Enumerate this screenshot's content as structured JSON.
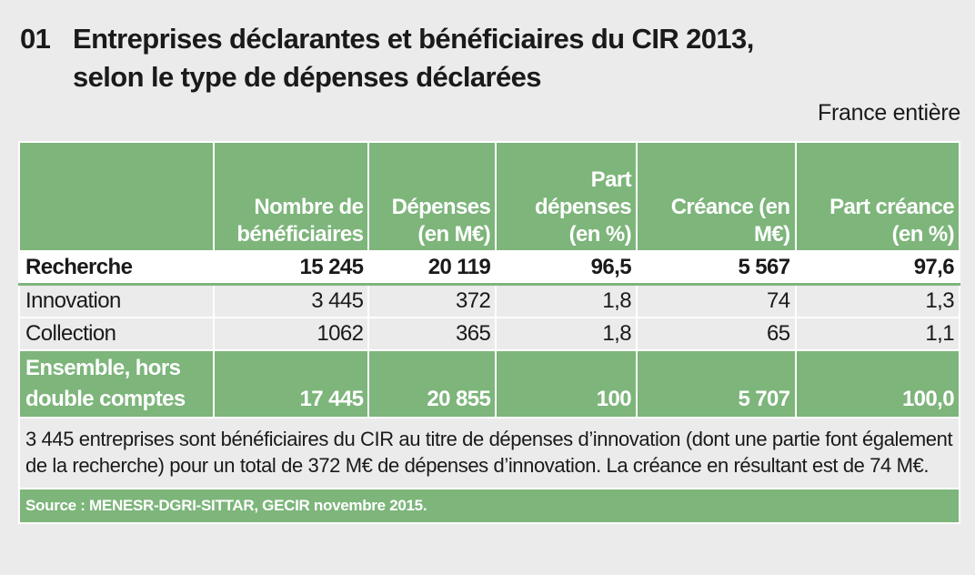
{
  "title": {
    "number": "01",
    "line1": "Entreprises déclarantes et bénéficiaires du CIR 2013,",
    "line2": "selon le type de dépenses déclarées"
  },
  "scope": "France entière",
  "table": {
    "headers": [
      "",
      "Nombre de bénéficiaires",
      "Dépenses (en M€)",
      "Part dépenses (en %)",
      "Créance (en M€)",
      "Part créance (en %)"
    ],
    "rows": [
      {
        "label": "Recherche",
        "values": [
          "15 245",
          "20 119",
          "96,5",
          "5 567",
          "97,6"
        ]
      },
      {
        "label": "Innovation",
        "values": [
          "3 445",
          "372",
          "1,8",
          "74",
          "1,3"
        ]
      },
      {
        "label": "Collection",
        "values": [
          "1062",
          "365",
          "1,8",
          "65",
          "1,1"
        ]
      }
    ],
    "total": {
      "label_line1": "Ensemble, hors",
      "label_line2": "double comptes",
      "values": [
        "17 445",
        "20 855",
        "100",
        "5 707",
        "100,0"
      ]
    }
  },
  "note": "3 445 entreprises sont bénéficiaires du CIR au titre de dépenses d’innovation (dont une partie font également de la recherche) pour un total de 372 M€ de dépenses d’innovation. La créance en résultant est de 74 M€.",
  "source": "Source :  MENESR-DGRI-SITTAR, GECIR novembre 2015."
}
